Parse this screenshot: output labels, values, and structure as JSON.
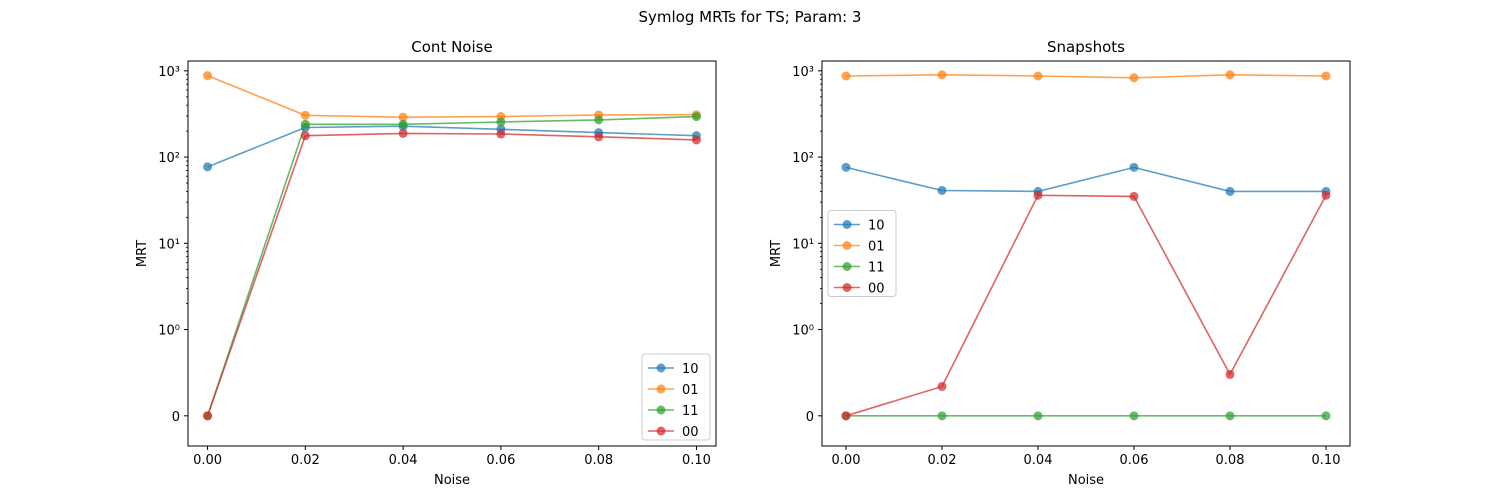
{
  "figure_title": "Symlog MRTs for TS; Param: 3",
  "colors": {
    "10": "#1f77b4",
    "01": "#ff7f0e",
    "11": "#2ca02c",
    "00": "#d62728"
  },
  "chart_data": [
    {
      "type": "line",
      "title": "Cont Noise",
      "xlabel": "Noise",
      "ylabel": "MRT",
      "yscale": "symlog",
      "linthresh": 1,
      "xlim": [
        -0.004,
        0.104
      ],
      "ylim": [
        -0.35,
        1300
      ],
      "xticks": [
        0.0,
        0.02,
        0.04,
        0.06,
        0.08,
        0.1
      ],
      "xtick_labels": [
        "0.00",
        "0.02",
        "0.04",
        "0.06",
        "0.08",
        "0.10"
      ],
      "yticks": [
        0,
        1,
        10,
        100,
        1000
      ],
      "legend_loc": "lower right",
      "x": [
        0.0,
        0.02,
        0.04,
        0.06,
        0.08,
        0.1
      ],
      "series": [
        {
          "name": "10",
          "values": [
            77,
            220,
            228,
            210,
            192,
            177
          ]
        },
        {
          "name": "01",
          "values": [
            880,
            305,
            290,
            295,
            308,
            310
          ]
        },
        {
          "name": "11",
          "values": [
            0,
            240,
            240,
            255,
            270,
            295
          ]
        },
        {
          "name": "00",
          "values": [
            0,
            177,
            188,
            185,
            172,
            158
          ]
        }
      ]
    },
    {
      "type": "line",
      "title": "Snapshots",
      "xlabel": "Noise",
      "ylabel": "MRT",
      "yscale": "symlog",
      "linthresh": 1,
      "xlim": [
        -0.005,
        0.105
      ],
      "ylim": [
        -0.35,
        1300
      ],
      "xticks": [
        0.0,
        0.02,
        0.04,
        0.06,
        0.08,
        0.1
      ],
      "xtick_labels": [
        "0.00",
        "0.02",
        "0.04",
        "0.06",
        "0.08",
        "0.10"
      ],
      "yticks": [
        0,
        1,
        10,
        100,
        1000
      ],
      "legend_loc": "center left",
      "x": [
        0.0,
        0.02,
        0.04,
        0.06,
        0.08,
        0.1
      ],
      "series": [
        {
          "name": "10",
          "values": [
            76,
            41,
            40,
            76,
            40,
            40
          ]
        },
        {
          "name": "01",
          "values": [
            870,
            900,
            870,
            830,
            900,
            870
          ]
        },
        {
          "name": "11",
          "values": [
            0,
            0,
            0,
            0,
            0,
            0
          ]
        },
        {
          "name": "00",
          "values": [
            0,
            0.34,
            36,
            35,
            0.48,
            36
          ]
        }
      ]
    }
  ]
}
